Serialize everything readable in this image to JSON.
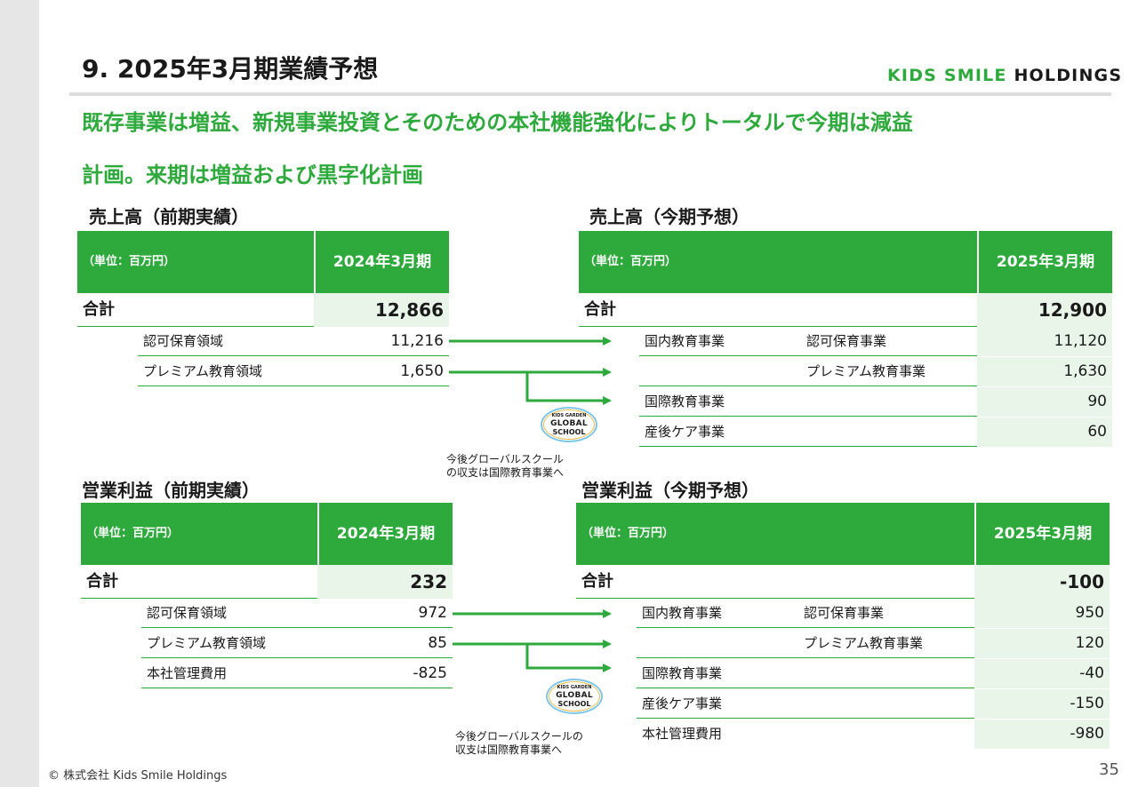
{
  "header": {
    "title": "9. 2025年3月期業績予想",
    "logo_part1": "KIDS SMILE",
    "logo_part2": "HOLDINGS"
  },
  "headline": {
    "line1": "既存事業は増益、新規事業投資とそのための本社機能強化によりトータルで今期は減益",
    "line2": "計画。来期は増益および黒字化計画"
  },
  "sales_prev": {
    "title": "売上高（前期実績）",
    "unit": "（単位：百万円）",
    "period": "2024年3月期",
    "total_label": "合計",
    "total_value": "12,866",
    "rows": [
      {
        "label": "認可保育領域",
        "value": "11,216"
      },
      {
        "label": "プレミアム教育領域",
        "value": "1,650"
      }
    ]
  },
  "sales_curr": {
    "title": "売上高（今期予想）",
    "unit": "（単位：百万円）",
    "period": "2025年3月期",
    "total_label": "合計",
    "total_value": "12,900",
    "rows": [
      {
        "group": "国内教育事業",
        "label": "認可保育事業",
        "value": "11,120"
      },
      {
        "group": "",
        "label": "プレミアム教育事業",
        "value": "1,630"
      },
      {
        "group": "国際教育事業",
        "label": "",
        "value": "90"
      },
      {
        "group": "産後ケア事業",
        "label": "",
        "value": "60"
      }
    ]
  },
  "op_prev": {
    "title": "営業利益（前期実績）",
    "unit": "（単位：百万円）",
    "period": "2024年3月期",
    "total_label": "合計",
    "total_value": "232",
    "rows": [
      {
        "label": "認可保育領域",
        "value": "972"
      },
      {
        "label": "プレミアム教育領域",
        "value": "85"
      },
      {
        "label": "本社管理費用",
        "value": "-825"
      }
    ]
  },
  "op_curr": {
    "title": "営業利益（今期予想）",
    "unit": "（単位：百万円）",
    "period": "2025年3月期",
    "total_label": "合計",
    "total_value": "-100",
    "rows": [
      {
        "group": "国内教育事業",
        "label": "認可保育事業",
        "value": "950"
      },
      {
        "group": "",
        "label": "プレミアム教育事業",
        "value": "120"
      },
      {
        "group": "国際教育事業",
        "label": "",
        "value": "-40"
      },
      {
        "group": "産後ケア事業",
        "label": "",
        "value": "-150"
      },
      {
        "group": "本社管理費用",
        "label": "",
        "value": "-980"
      }
    ]
  },
  "global_school": {
    "small": "KIDS GARDEN",
    "name1": "GLOBAL",
    "name2": "SCHOOL"
  },
  "notes": {
    "sales_line1": "今後グローバルスクール",
    "sales_line2": "の収支は国際教育事業へ",
    "op_line1": "今後グローバルスクールの",
    "op_line2": "収支は国際教育事業へ"
  },
  "footer": {
    "copyright": "© 株式会社 Kids Smile Holdings",
    "page": "35"
  },
  "colors": {
    "accent": "#2ea93c",
    "shade": "#e8f5e8"
  }
}
